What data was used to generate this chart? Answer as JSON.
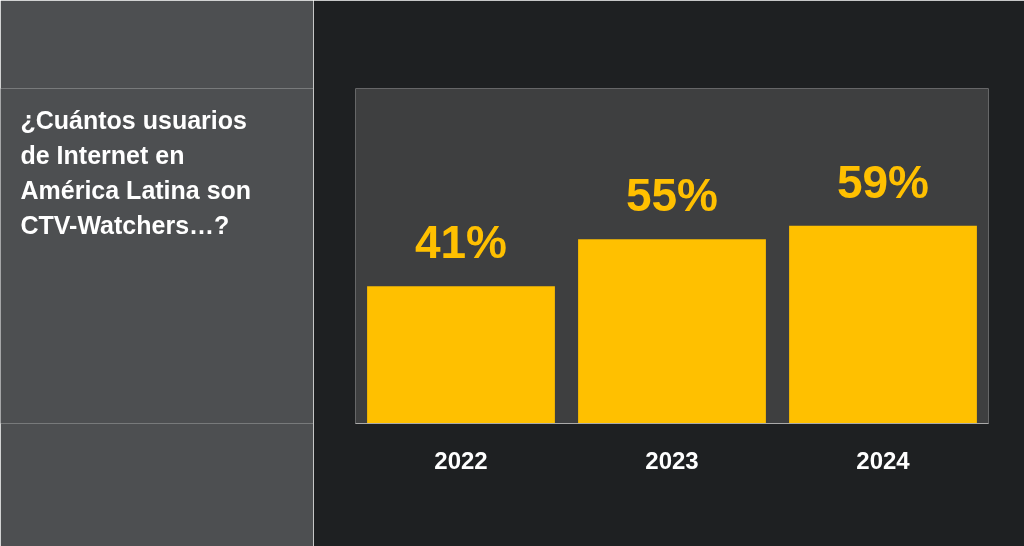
{
  "chart_data": {
    "type": "bar",
    "title": "¿Cuántos usuarios de Internet en América Latina son CTV-Watchers…?",
    "categories": [
      "2022",
      "2023",
      "2024"
    ],
    "values": [
      41,
      55,
      59
    ],
    "value_labels": [
      "41%",
      "55%",
      "59%"
    ],
    "color": "#ffc000",
    "ylim": [
      0,
      100
    ],
    "tick_labels": "x"
  }
}
